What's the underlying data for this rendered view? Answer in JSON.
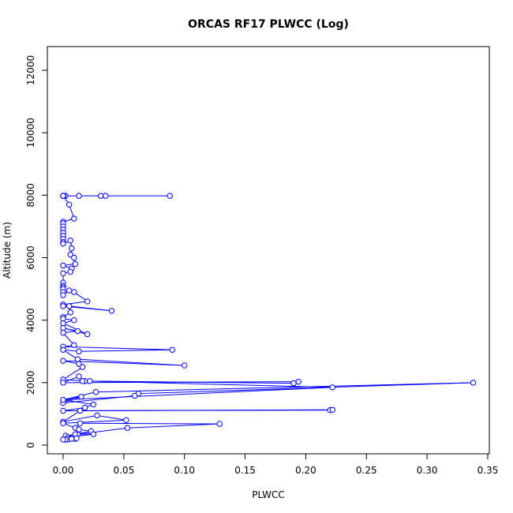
{
  "chart_data": {
    "type": "line",
    "title": "ORCAS RF17 PLWCC (Log)",
    "xlabel": "PLWCC",
    "ylabel": "Altitude (m)",
    "xlim": [
      0,
      0.35
    ],
    "ylim": [
      0,
      12500
    ],
    "x_ticks": [
      "0.00",
      "0.05",
      "0.10",
      "0.15",
      "0.20",
      "0.25",
      "0.30",
      "0.35"
    ],
    "y_ticks": [
      "0",
      "2000",
      "4000",
      "6000",
      "8000",
      "10000",
      "12000"
    ],
    "grid": false,
    "series_color": "#0000ff",
    "markers": "open-circle",
    "series": [
      {
        "x": [
          0.088,
          0.035,
          0.031,
          0.013,
          0.002,
          0.0005,
          0.0,
          0.0,
          0.0,
          0.005,
          0.009,
          0.0,
          0.0,
          0.0,
          0.0,
          0.0,
          0.0,
          0.0,
          0.0,
          0.0,
          0.0,
          0.006,
          0.007,
          0.006,
          0.009,
          0.01,
          0.0,
          0.007,
          0.006,
          0.0,
          0.0,
          0.0,
          0.0,
          0.0,
          0.0,
          0.0,
          0.005,
          0.009,
          0.02,
          0.0,
          0.0,
          0.04,
          0.005,
          0.006,
          0.0,
          0.0,
          0.009,
          0.0,
          0.02,
          0.0,
          0.012,
          0.0,
          0.009,
          0.0,
          0.09,
          0.013,
          0.0,
          0.012,
          0.1,
          0.0,
          0.013,
          0.016,
          0.0,
          0.018,
          0.19,
          0.194,
          0.0,
          0.013,
          0.016,
          0.022,
          0.222,
          0.0,
          0.027,
          0.338,
          0.062,
          0.059,
          0.0,
          0.015,
          0.0,
          0.025,
          0.018,
          0.0,
          0.22,
          0.222,
          0.014,
          0.0,
          0.028,
          0.052,
          0.0,
          0.01,
          0.014,
          0.129,
          0.053,
          0.002,
          0.012,
          0.013,
          0.023,
          0.01,
          0.025,
          0.004,
          0.006,
          0.01,
          0.002,
          0.004,
          0.007,
          0.002,
          0.011,
          0.0
        ],
        "y": [
          7980,
          7980,
          7980,
          7980,
          7980,
          7980,
          7980,
          7980,
          7980,
          7700,
          7250,
          7150,
          7100,
          7000,
          6900,
          6800,
          6700,
          6600,
          6500,
          6450,
          6450,
          6550,
          6300,
          6100,
          6000,
          5800,
          5750,
          5650,
          5550,
          5500,
          5200,
          5100,
          5050,
          5000,
          4900,
          4800,
          4950,
          4900,
          4600,
          4500,
          4450,
          4300,
          4450,
          4250,
          4100,
          4050,
          4000,
          3900,
          3550,
          3750,
          3650,
          3600,
          3200,
          3150,
          3050,
          3000,
          3050,
          2750,
          2550,
          2700,
          2600,
          2500,
          2100,
          2050,
          1980,
          2030,
          2000,
          2200,
          2050,
          2050,
          1850,
          1450,
          1700,
          2000,
          1650,
          1580,
          1350,
          1550,
          1450,
          1300,
          1200,
          1100,
          1120,
          1130,
          1100,
          750,
          950,
          800,
          700,
          550,
          700,
          680,
          550,
          300,
          350,
          500,
          450,
          350,
          350,
          250,
          220,
          200,
          180,
          180,
          200,
          180,
          220,
          180
        ]
      }
    ]
  }
}
